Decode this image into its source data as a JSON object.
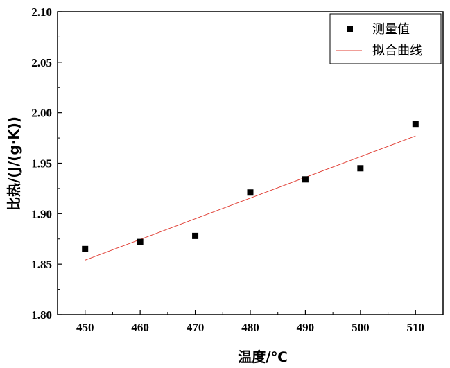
{
  "chart_data": {
    "type": "scatter",
    "xlabel": "温度/℃",
    "ylabel": "比热/(J/(g·K))",
    "xlim": [
      445,
      515
    ],
    "ylim": [
      1.8,
      2.1
    ],
    "xticks": [
      "450",
      "460",
      "470",
      "480",
      "490",
      "500",
      "510"
    ],
    "yticks": [
      "1.80",
      "1.85",
      "1.90",
      "1.95",
      "2.00",
      "2.05",
      "2.10"
    ],
    "legend_position": "top-right",
    "series": [
      {
        "name": "测量值",
        "kind": "scatter",
        "marker": "square",
        "color": "#000000",
        "x": [
          450,
          460,
          470,
          480,
          490,
          500,
          510
        ],
        "y": [
          1.865,
          1.872,
          1.878,
          1.921,
          1.934,
          1.945,
          1.989
        ]
      },
      {
        "name": "拟合曲线",
        "kind": "line",
        "color": "#e03c32",
        "x": [
          450,
          510
        ],
        "y": [
          1.854,
          1.977
        ]
      }
    ]
  }
}
